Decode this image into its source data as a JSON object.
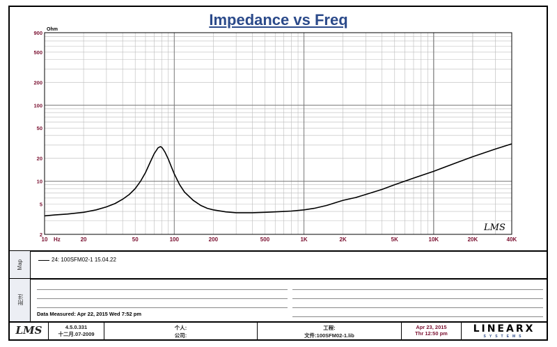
{
  "chart_data": {
    "type": "line",
    "title": "Impedance vs Freq",
    "y_unit": "Ohm",
    "x_unit": "Hz",
    "x_scale": "log",
    "y_scale": "log",
    "xlim": [
      10,
      40000
    ],
    "ylim": [
      2,
      900
    ],
    "grid": true,
    "x_tick_labels": [
      {
        "v": 10,
        "t": "10"
      },
      {
        "v": 20,
        "t": "20"
      },
      {
        "v": 50,
        "t": "50"
      },
      {
        "v": 100,
        "t": "100"
      },
      {
        "v": 200,
        "t": "200"
      },
      {
        "v": 500,
        "t": "500"
      },
      {
        "v": 1000,
        "t": "1K"
      },
      {
        "v": 2000,
        "t": "2K"
      },
      {
        "v": 5000,
        "t": "5K"
      },
      {
        "v": 10000,
        "t": "10K"
      },
      {
        "v": 20000,
        "t": "20K"
      },
      {
        "v": 40000,
        "t": "40K"
      }
    ],
    "y_tick_labels": [
      {
        "v": 2,
        "t": "2"
      },
      {
        "v": 5,
        "t": "5"
      },
      {
        "v": 10,
        "t": "10"
      },
      {
        "v": 20,
        "t": "20"
      },
      {
        "v": 50,
        "t": "50"
      },
      {
        "v": 100,
        "t": "100"
      },
      {
        "v": 200,
        "t": "200"
      },
      {
        "v": 500,
        "t": "500"
      },
      {
        "v": 900,
        "t": "900"
      }
    ],
    "series": [
      {
        "name": "24: 100SFM02-1   15.04.22",
        "color": "#000000",
        "x": [
          10,
          12,
          15,
          20,
          25,
          30,
          35,
          40,
          45,
          50,
          55,
          60,
          65,
          70,
          75,
          78,
          80,
          82,
          85,
          90,
          95,
          100,
          110,
          120,
          140,
          160,
          180,
          200,
          250,
          300,
          400,
          500,
          700,
          800,
          1000,
          1200,
          1500,
          1800,
          2000,
          2500,
          3000,
          4000,
          5000,
          7000,
          10000,
          15000,
          20000,
          30000,
          40000
        ],
        "y": [
          3.5,
          3.6,
          3.7,
          3.9,
          4.2,
          4.6,
          5.1,
          5.8,
          6.7,
          8.0,
          10.0,
          13.0,
          17.5,
          23.0,
          27.5,
          28.5,
          28.0,
          26.5,
          24.0,
          19.5,
          15.5,
          12.5,
          9.0,
          7.2,
          5.6,
          4.8,
          4.4,
          4.2,
          3.95,
          3.85,
          3.85,
          3.9,
          4.0,
          4.05,
          4.2,
          4.4,
          4.8,
          5.3,
          5.6,
          6.1,
          6.7,
          7.8,
          9.0,
          11.0,
          13.5,
          17.5,
          21.0,
          26.5,
          31.0
        ]
      }
    ]
  },
  "watermark": "LMS",
  "sections": {
    "legend_side_label": "Map",
    "notes_side_label": "附注",
    "date_measured": "Data Measured: Apr 22, 2015  Wed  7:52 pm"
  },
  "footer": {
    "logo": "LMS",
    "version": "4.5.0.331",
    "version_date": "十二月.07-2009",
    "person_label": "个人:",
    "company_label": "公司:",
    "project_label": "工程:",
    "file_label": "文件:100SFM02-1.lib",
    "date": "Apr 23, 2015",
    "time": "Thr 12:50 pm",
    "brand": "LINEARX",
    "brand_sub": "SYSTEMS"
  }
}
